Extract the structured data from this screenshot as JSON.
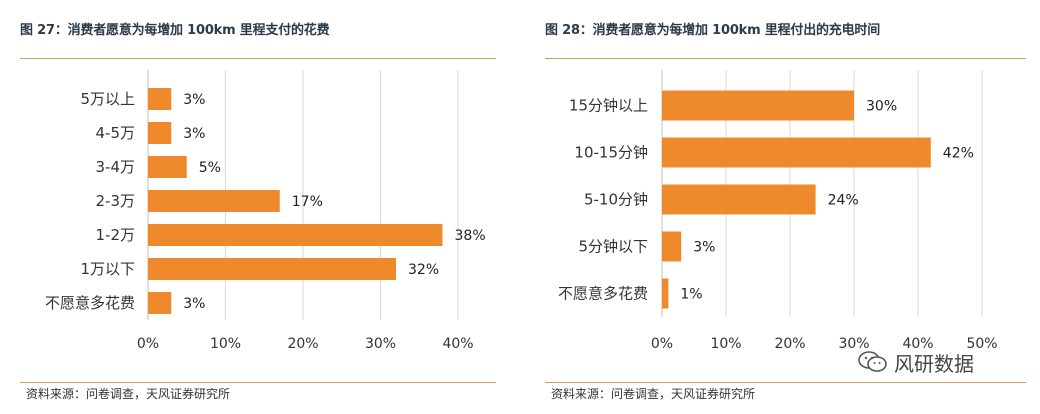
{
  "colors": {
    "bar": "#ee8a2c",
    "title": "#2c3a4a",
    "rule": "#c8a35a",
    "grid": "#d9d9d9"
  },
  "left": {
    "title": "图 27：消费者愿意为每增加 100km 里程支付的花费",
    "source": "资料来源：问卷调查，天风证券研究所"
  },
  "right": {
    "title": "图 28：消费者愿意为每增加 100km 里程付出的充电时间",
    "source": "资料来源：问卷调查，天风证券研究所"
  },
  "watermark": {
    "icon": "wechat-icon",
    "text": "风研数据"
  },
  "chart_data": [
    {
      "type": "bar",
      "orientation": "horizontal",
      "title": "图 27：消费者愿意为每增加 100km 里程支付的花费",
      "categories": [
        "5万以上",
        "4-5万",
        "3-4万",
        "2-3万",
        "1-2万",
        "1万以下",
        "不愿意多花费"
      ],
      "values": [
        3,
        3,
        5,
        17,
        38,
        32,
        3
      ],
      "value_labels": [
        "3%",
        "3%",
        "5%",
        "17%",
        "38%",
        "32%",
        "3%"
      ],
      "xlim": [
        0,
        40
      ],
      "xticks": [
        0,
        10,
        20,
        30,
        40
      ],
      "xtick_labels": [
        "0%",
        "10%",
        "20%",
        "30%",
        "40%"
      ],
      "grid": true,
      "legend": "none"
    },
    {
      "type": "bar",
      "orientation": "horizontal",
      "title": "图 28：消费者愿意为每增加 100km 里程付出的充电时间",
      "categories": [
        "15分钟以上",
        "10-15分钟",
        "5-10分钟",
        "5分钟以下",
        "不愿意多花费"
      ],
      "values": [
        30,
        42,
        24,
        3,
        1
      ],
      "value_labels": [
        "30%",
        "42%",
        "24%",
        "3%",
        "1%"
      ],
      "xlim": [
        0,
        50
      ],
      "xticks": [
        0,
        10,
        20,
        30,
        40,
        50
      ],
      "xtick_labels": [
        "0%",
        "10%",
        "20%",
        "30%",
        "40%",
        "50%"
      ],
      "grid": true,
      "legend": "none"
    }
  ]
}
